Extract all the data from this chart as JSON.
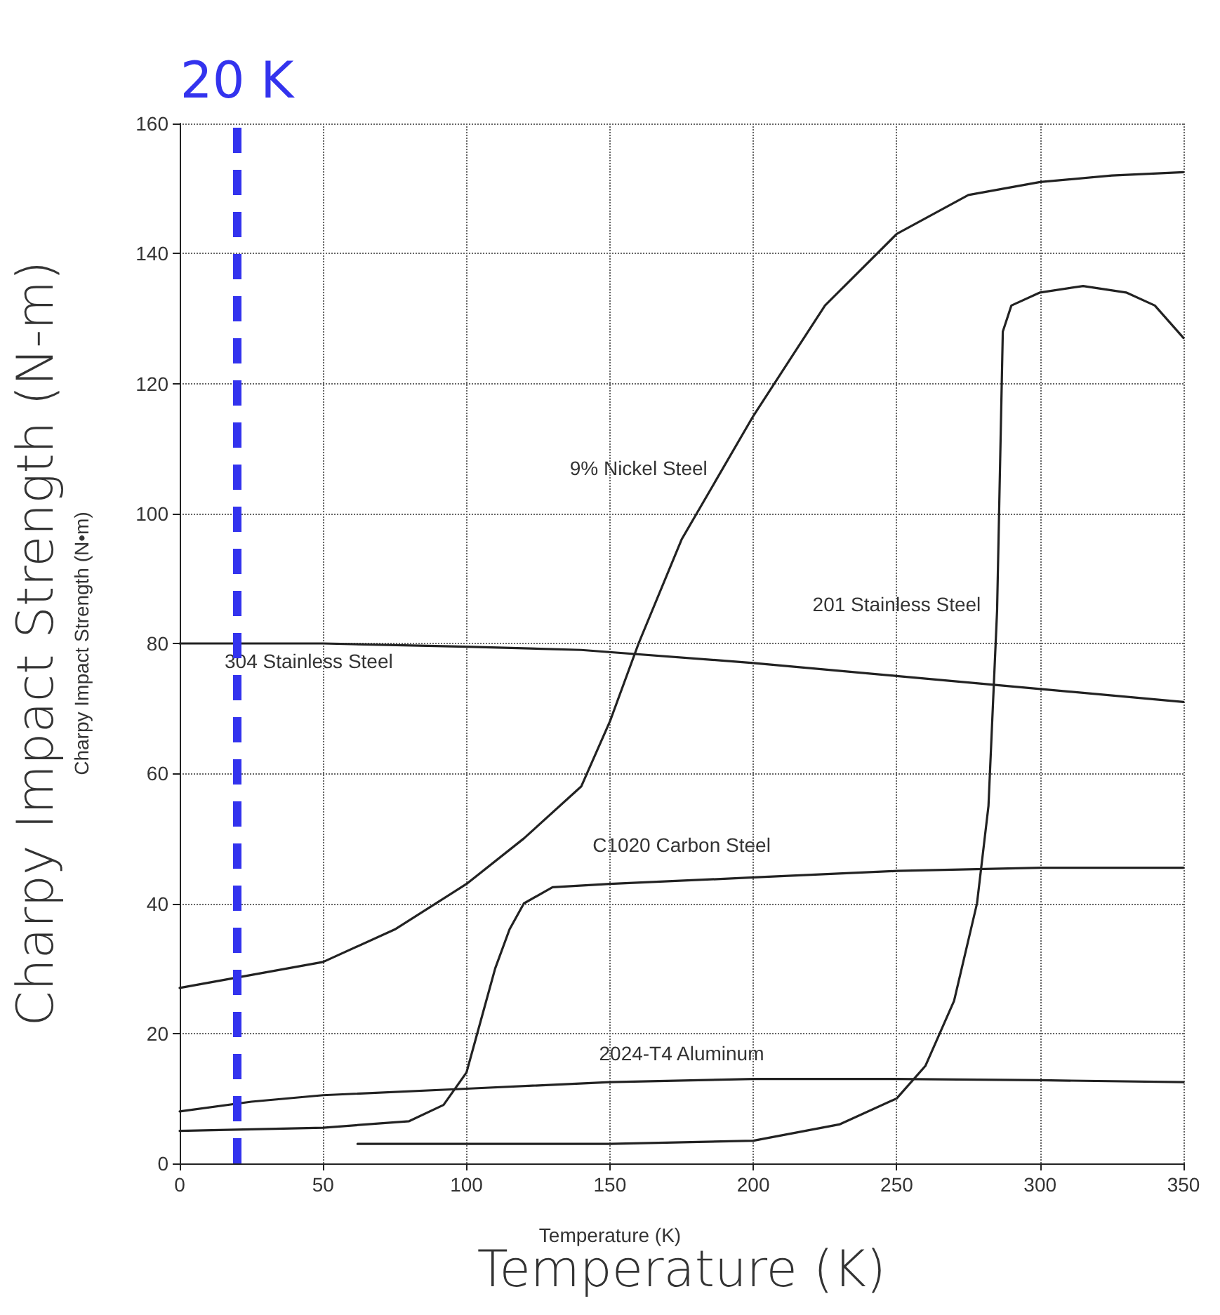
{
  "chart_data": {
    "type": "line",
    "xlabel": "Temperature (K)",
    "ylabel": "Charpy Impact Strength (N-m)",
    "annotations": [
      "Temperature (K)",
      "Charpy Impact Strength (N•m)"
    ],
    "xlim": [
      0,
      350
    ],
    "xticks": [
      0,
      50,
      100,
      150,
      200,
      250,
      300,
      350
    ],
    "ylim": [
      0,
      160
    ],
    "yticks": [
      0,
      20,
      40,
      60,
      80,
      100,
      120,
      140,
      160
    ],
    "grid": true,
    "legend": false,
    "marker": "none",
    "line_style": "solid",
    "ref_lines": [
      {
        "axis": "x",
        "value": 20,
        "label": "20 K",
        "color": "#3333ee",
        "line_style": "dashed"
      }
    ],
    "series": [
      {
        "name": "9% Nickel Steel",
        "color": "#222222",
        "x": [
          0,
          25,
          50,
          75,
          100,
          120,
          140,
          150,
          160,
          175,
          200,
          225,
          250,
          275,
          300,
          325,
          350
        ],
        "values": [
          27,
          29,
          31,
          36,
          43,
          50,
          58,
          68,
          80,
          96,
          115,
          132,
          143,
          149,
          151,
          152,
          152.5
        ]
      },
      {
        "name": "201 Stainless Steel",
        "color": "#222222",
        "x": [
          62,
          100,
          150,
          200,
          230,
          250,
          260,
          270,
          278,
          282,
          285,
          287,
          290,
          300,
          315,
          330,
          340,
          350
        ],
        "values": [
          3,
          3,
          3,
          3.5,
          6,
          10,
          15,
          25,
          40,
          55,
          85,
          128,
          132,
          134,
          135,
          134,
          132,
          127
        ]
      },
      {
        "name": "304 Stainless Steel",
        "color": "#222222",
        "x": [
          0,
          50,
          100,
          140,
          200,
          250,
          300,
          350
        ],
        "values": [
          80,
          80,
          79.5,
          79,
          77,
          75,
          73,
          71
        ]
      },
      {
        "name": "C1020 Carbon Steel",
        "color": "#222222",
        "x": [
          0,
          50,
          80,
          92,
          100,
          105,
          110,
          115,
          120,
          130,
          150,
          200,
          250,
          300,
          350
        ],
        "values": [
          5,
          5.5,
          6.5,
          9,
          14,
          22,
          30,
          36,
          40,
          42.5,
          43,
          44,
          45,
          45.5,
          45.5
        ]
      },
      {
        "name": "2024-T4 Aluminum",
        "color": "#222222",
        "x": [
          0,
          25,
          50,
          100,
          150,
          200,
          250,
          300,
          350
        ],
        "values": [
          8,
          9.5,
          10.5,
          11.5,
          12.5,
          13,
          13,
          12.8,
          12.5
        ]
      }
    ]
  }
}
